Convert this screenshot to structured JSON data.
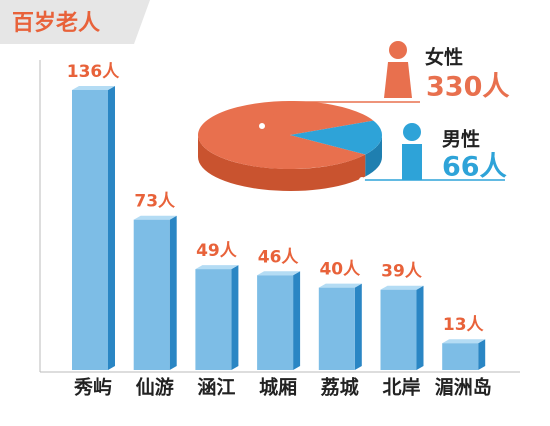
{
  "title": "百岁老人",
  "chart_data": [
    {
      "type": "bar",
      "categories": [
        "秀屿",
        "仙游",
        "涵江",
        "城厢",
        "荔城",
        "北岸",
        "湄洲岛"
      ],
      "values": [
        136,
        73,
        49,
        46,
        40,
        39,
        13
      ],
      "value_labels": [
        "136人",
        "73人",
        "49人",
        "46人",
        "40人",
        "39人",
        "13人"
      ],
      "color": "#7dbde6"
    },
    {
      "type": "pie",
      "categories": [
        "女性",
        "男性"
      ],
      "values": [
        330,
        66
      ],
      "value_labels": [
        "330人",
        "66人"
      ],
      "colors": [
        "#e8704e",
        "#2ea3d8"
      ]
    }
  ]
}
